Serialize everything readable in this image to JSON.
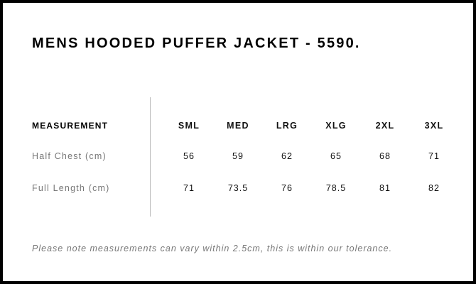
{
  "title": "MENS HOODED PUFFER JACKET - 5590.",
  "table": {
    "header_label": "MEASUREMENT",
    "sizes": [
      "SML",
      "MED",
      "LRG",
      "XLG",
      "2XL",
      "3XL"
    ],
    "rows": [
      {
        "label": "Half Chest (cm)",
        "values": [
          "56",
          "59",
          "62",
          "65",
          "68",
          "71"
        ]
      },
      {
        "label": "Full Length (cm)",
        "values": [
          "71",
          "73.5",
          "76",
          "78.5",
          "81",
          "82"
        ]
      }
    ]
  },
  "note": "Please note measurements can vary within 2.5cm, this is within our tolerance."
}
